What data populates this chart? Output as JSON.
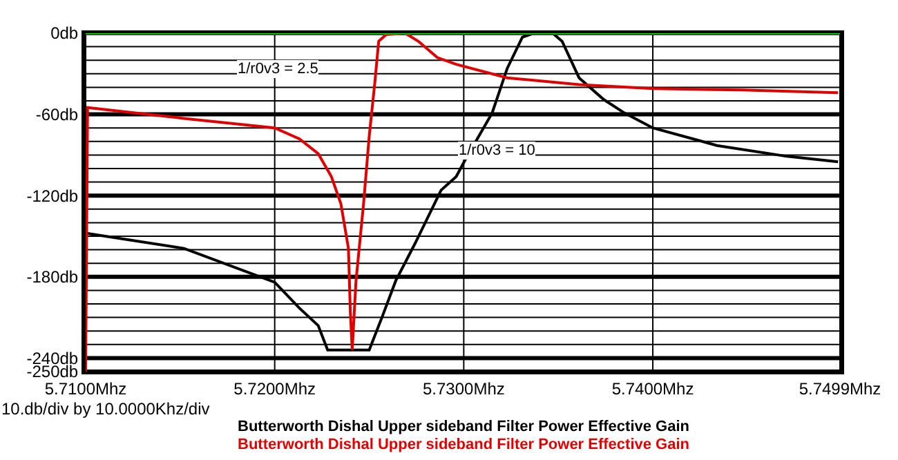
{
  "chart_data": {
    "type": "line",
    "xlim": [
      5.71,
      5.7499
    ],
    "xticks": [
      {
        "value": 5.71,
        "label": "5.7100Mhz"
      },
      {
        "value": 5.72,
        "label": "5.7200Mhz"
      },
      {
        "value": 5.73,
        "label": "5.7300Mhz"
      },
      {
        "value": 5.74,
        "label": "5.7400Mhz"
      },
      {
        "value": 5.7499,
        "label": "5.7499Mhz"
      }
    ],
    "ylim": [
      -250,
      0
    ],
    "yticks": [
      {
        "value": 0,
        "label": "0db"
      },
      {
        "value": -10,
        "label": null
      },
      {
        "value": -20,
        "label": null
      },
      {
        "value": -30,
        "label": null
      },
      {
        "value": -40,
        "label": null
      },
      {
        "value": -50,
        "label": null
      },
      {
        "value": -60,
        "label": "-60db"
      },
      {
        "value": -70,
        "label": null
      },
      {
        "value": -80,
        "label": null
      },
      {
        "value": -90,
        "label": null
      },
      {
        "value": -100,
        "label": null
      },
      {
        "value": -110,
        "label": null
      },
      {
        "value": -120,
        "label": "-120db"
      },
      {
        "value": -130,
        "label": null
      },
      {
        "value": -140,
        "label": null
      },
      {
        "value": -150,
        "label": null
      },
      {
        "value": -160,
        "label": null
      },
      {
        "value": -170,
        "label": null
      },
      {
        "value": -180,
        "label": "-180db"
      },
      {
        "value": -190,
        "label": null
      },
      {
        "value": -200,
        "label": null
      },
      {
        "value": -210,
        "label": null
      },
      {
        "value": -220,
        "label": null
      },
      {
        "value": -230,
        "label": null
      },
      {
        "value": -240,
        "label": "-240db"
      },
      {
        "value": -250,
        "label": "-250db"
      }
    ],
    "grid": true,
    "legend": "bottom",
    "line_style": "solid",
    "marker": "none",
    "ref_lines": [
      {
        "axis": "y",
        "value": 0,
        "color": "#00c800"
      }
    ],
    "annotations": [
      "1/r0v3 = 2.5",
      "1/r0v3 = 10",
      "10.db/div by 10.0000Khz/div"
    ],
    "series": [
      {
        "name": "Butterworth Dishal Upper sideband Filter Power Effective Gain",
        "color": "#000000",
        "x": [
          5.7101,
          5.7152,
          5.72,
          5.7213,
          5.7223,
          5.7228,
          5.725,
          5.7257,
          5.7264,
          5.7274,
          5.7288,
          5.7296,
          5.7301,
          5.7315,
          5.7323,
          5.7331,
          5.7337,
          5.7347,
          5.7352,
          5.7361,
          5.7374,
          5.7385,
          5.74,
          5.7434,
          5.7471,
          5.7498
        ],
        "values": [
          -148,
          -159,
          -184,
          -203,
          -216,
          -234,
          -234,
          -209,
          -183,
          -156,
          -116,
          -106,
          -93,
          -59,
          -26,
          -3,
          0,
          0,
          -6,
          -33,
          -49,
          -59,
          -70,
          -83,
          -91,
          -95
        ]
      },
      {
        "name": "Butterworth Dishal Upper sideband Filter Power Effective Gain",
        "color": "#e00000",
        "x": [
          5.71,
          5.7101,
          5.7152,
          5.72,
          5.7213,
          5.7223,
          5.723,
          5.7235,
          5.7239,
          5.724,
          5.7241,
          5.7243,
          5.7247,
          5.725,
          5.7253,
          5.7255,
          5.7259,
          5.7269,
          5.7276,
          5.7286,
          5.7296,
          5.7323,
          5.7361,
          5.74,
          5.7447,
          5.7498
        ],
        "values": [
          -250,
          -55,
          -63,
          -70,
          -78,
          -89,
          -106,
          -126,
          -159,
          -206,
          -234,
          -183,
          -126,
          -76,
          -36,
          -6,
          -1,
          0,
          -6,
          -18,
          -23,
          -33,
          -38,
          -41,
          -42,
          -44
        ]
      }
    ]
  }
}
